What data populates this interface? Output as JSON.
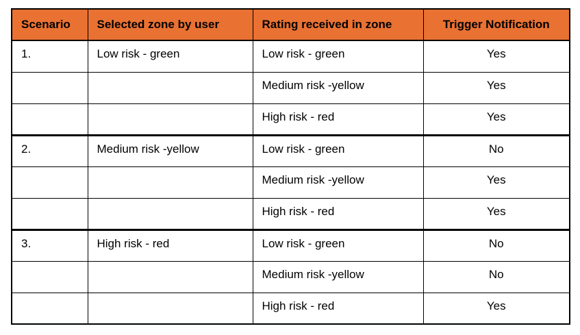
{
  "table": {
    "header_bg": "#E97132",
    "header_text_color": "#000000",
    "border_color": "#000000",
    "columns": [
      "Scenario",
      "Selected zone by user",
      "Rating received in zone",
      "Trigger Notification"
    ],
    "rows": [
      {
        "scenario": "1.",
        "selected_zone": "Low risk - green",
        "rating": "Low risk - green",
        "trigger": "Yes"
      },
      {
        "scenario": "",
        "selected_zone": "",
        "rating": "Medium risk -yellow",
        "trigger": "Yes"
      },
      {
        "scenario": "",
        "selected_zone": "",
        "rating": "High risk - red",
        "trigger": "Yes"
      },
      {
        "scenario": "2.",
        "selected_zone": "Medium risk -yellow",
        "rating": "Low risk - green",
        "trigger": "No"
      },
      {
        "scenario": "",
        "selected_zone": "",
        "rating": "Medium risk -yellow",
        "trigger": "Yes"
      },
      {
        "scenario": "",
        "selected_zone": "",
        "rating": "High risk - red",
        "trigger": "Yes"
      },
      {
        "scenario": "3.",
        "selected_zone": "High risk - red",
        "rating": "Low risk - green",
        "trigger": "No"
      },
      {
        "scenario": "",
        "selected_zone": "",
        "rating": "Medium risk -yellow",
        "trigger": "No"
      },
      {
        "scenario": "",
        "selected_zone": "",
        "rating": "High risk - red",
        "trigger": "Yes"
      }
    ]
  }
}
